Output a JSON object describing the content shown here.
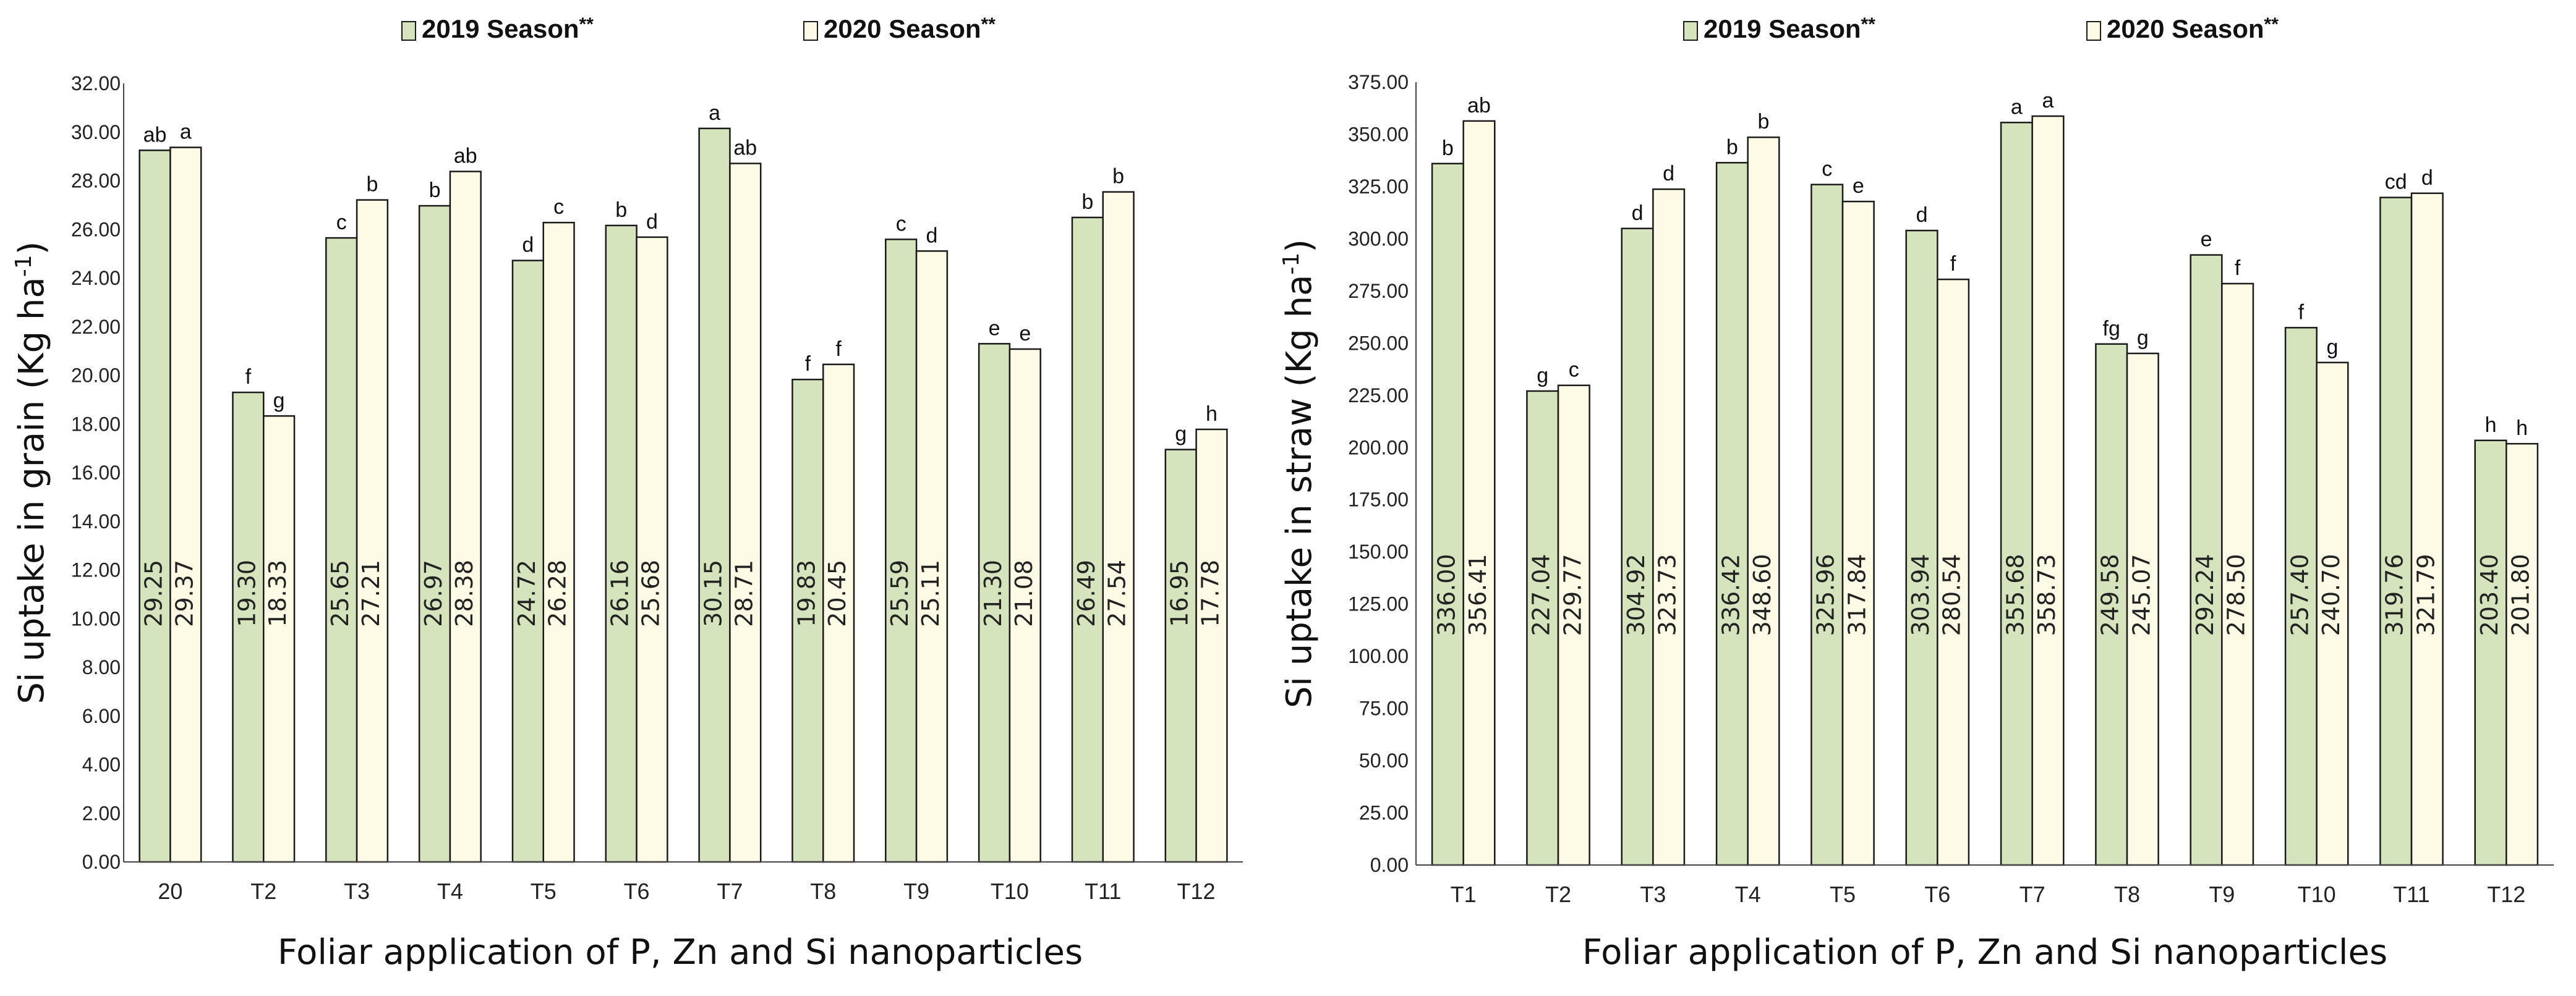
{
  "colors": {
    "series_2019": "#d6e4bd",
    "series_2020": "#fdfbe6",
    "bar_stroke": "#1a1a1a",
    "axis": "#444444"
  },
  "chart_data": [
    {
      "type": "bar",
      "ylabel_main": "Si uptake in grain (Kg ha",
      "ylabel_sup": "-1",
      "ylabel_end": ")",
      "xlabel": "Foliar application of P, Zn and Si nanoparticles",
      "ylim": [
        0,
        32
      ],
      "ytick_step": 2,
      "ytick_labels": [
        "0.00",
        "2.00",
        "4.00",
        "6.00",
        "8.00",
        "10.00",
        "12.00",
        "14.00",
        "16.00",
        "18.00",
        "20.00",
        "22.00",
        "24.00",
        "26.00",
        "28.00",
        "30.00",
        "32.00"
      ],
      "grid": false,
      "legend_position": "top",
      "categories": [
        "20",
        "T2",
        "T3",
        "T4",
        "T5",
        "T6",
        "T7",
        "T8",
        "T9",
        "T10",
        "T11",
        "T12"
      ],
      "series": [
        {
          "name": "2019 Season",
          "name_suffix": "**",
          "values": [
            29.25,
            19.3,
            25.65,
            26.97,
            24.72,
            26.16,
            30.15,
            19.83,
            25.59,
            21.3,
            26.49,
            16.95
          ],
          "value_labels": [
            "29.25",
            "19.30",
            "25.65",
            "26.97",
            "24.72",
            "26.16",
            "30.15",
            "19.83",
            "25.59",
            "21.30",
            "26.49",
            "16.95"
          ],
          "letters": [
            "ab",
            "f",
            "c",
            "b",
            "d",
            "b",
            "a",
            "f",
            "c",
            "e",
            "b",
            "g"
          ]
        },
        {
          "name": "2020 Season",
          "name_suffix": "**",
          "values": [
            29.37,
            18.33,
            27.21,
            28.38,
            26.28,
            25.68,
            28.71,
            20.45,
            25.11,
            21.08,
            27.54,
            17.78
          ],
          "value_labels": [
            "29.37",
            "18.33",
            "27.21",
            "28.38",
            "26.28",
            "25.68",
            "28.71",
            "20.45",
            "25.11",
            "21.08",
            "27.54",
            "17.78"
          ],
          "letters": [
            "a",
            "g",
            "b",
            "ab",
            "c",
            "d",
            "ab",
            "f",
            "d",
            "e",
            "b",
            "h"
          ]
        }
      ]
    },
    {
      "type": "bar",
      "ylabel_main": "Si uptake in straw (Kg ha",
      "ylabel_sup": "-1",
      "ylabel_end": ")",
      "xlabel": "Foliar application of P, Zn and Si nanoparticles",
      "ylim": [
        0,
        375
      ],
      "ytick_step": 25,
      "ytick_labels": [
        "0.00",
        "25.00",
        "50.00",
        "75.00",
        "100.00",
        "125.00",
        "150.00",
        "175.00",
        "200.00",
        "225.00",
        "250.00",
        "275.00",
        "300.00",
        "325.00",
        "350.00",
        "375.00"
      ],
      "grid": false,
      "legend_position": "top",
      "categories": [
        "T1",
        "T2",
        "T3",
        "T4",
        "T5",
        "T6",
        "T7",
        "T8",
        "T9",
        "T10",
        "T11",
        "T12"
      ],
      "series": [
        {
          "name": "2019 Season",
          "name_suffix": "**",
          "values": [
            336.0,
            227.04,
            304.92,
            336.42,
            325.96,
            303.94,
            355.68,
            249.58,
            292.24,
            257.4,
            319.76,
            203.4
          ],
          "value_labels": [
            "336.00",
            "227.04",
            "304.92",
            "336.42",
            "325.96",
            "303.94",
            "355.68",
            "249.58",
            "292.24",
            "257.40",
            "319.76",
            "203.40"
          ],
          "letters": [
            "b",
            "g",
            "d",
            "b",
            "c",
            "d",
            "a",
            "fg",
            "e",
            "f",
            "cd",
            "h"
          ]
        },
        {
          "name": "2020 Season",
          "name_suffix": "**",
          "values": [
            356.41,
            229.77,
            323.73,
            348.6,
            317.84,
            280.54,
            358.73,
            245.07,
            278.5,
            240.7,
            321.79,
            201.8
          ],
          "value_labels": [
            "356.41",
            "229.77",
            "323.73",
            "348.60",
            "317.84",
            "280.54",
            "358.73",
            "245.07",
            "278.50",
            "240.70",
            "321.79",
            "201.80"
          ],
          "letters": [
            "ab",
            "c",
            "d",
            "b",
            "e",
            "f",
            "a",
            "g",
            "f",
            "g",
            "d",
            "h"
          ]
        }
      ]
    }
  ]
}
